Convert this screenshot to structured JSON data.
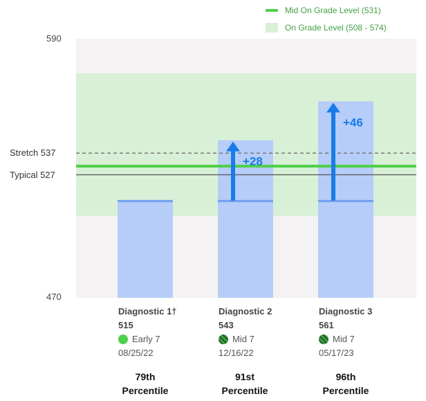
{
  "legend": {
    "mid_label": "Mid On Grade Level (531)",
    "band_label": "On Grade Level (508 - 574)"
  },
  "colors": {
    "plot_bg": "#f5f2f3",
    "band": "#d8f1d6",
    "mid_line": "#4fcf4a",
    "bar": "#b5cdf8",
    "bar_top": "#6f9ff0",
    "arrow": "#1a7be8",
    "stretch_line": "#777777",
    "typical_line": "#555555"
  },
  "chart_data": {
    "type": "bar",
    "ylim": [
      470,
      590
    ],
    "y_ticks": [
      "590",
      "470"
    ],
    "reference_lines": [
      {
        "label": "Stretch 537",
        "value": 537,
        "style": "dashed"
      },
      {
        "label": "Typical 527",
        "value": 527,
        "style": "solid"
      }
    ],
    "mid_on_grade_level": 531,
    "on_grade_band": [
      508,
      574
    ],
    "categories": [
      "Diagnostic 1†",
      "Diagnostic 2",
      "Diagnostic 3"
    ],
    "values": [
      515,
      543,
      561
    ],
    "baseline": 515,
    "growth_labels": [
      "",
      "+28",
      "+46"
    ]
  },
  "diagnostics": [
    {
      "name": "Diagnostic 1†",
      "score": "515",
      "level": "Early 7",
      "level_icon": "solid-green-dot-icon",
      "date": "08/25/22",
      "pct_line1": "79th",
      "pct_line2": "Percentile"
    },
    {
      "name": "Diagnostic 2",
      "score": "543",
      "level": "Mid 7",
      "level_icon": "hatched-green-dot-icon",
      "date": "12/16/22",
      "pct_line1": "91st",
      "pct_line2": "Percentile"
    },
    {
      "name": "Diagnostic 3",
      "score": "561",
      "level": "Mid 7",
      "level_icon": "hatched-green-dot-icon",
      "date": "05/17/23",
      "pct_line1": "96th",
      "pct_line2": "Percentile"
    }
  ]
}
